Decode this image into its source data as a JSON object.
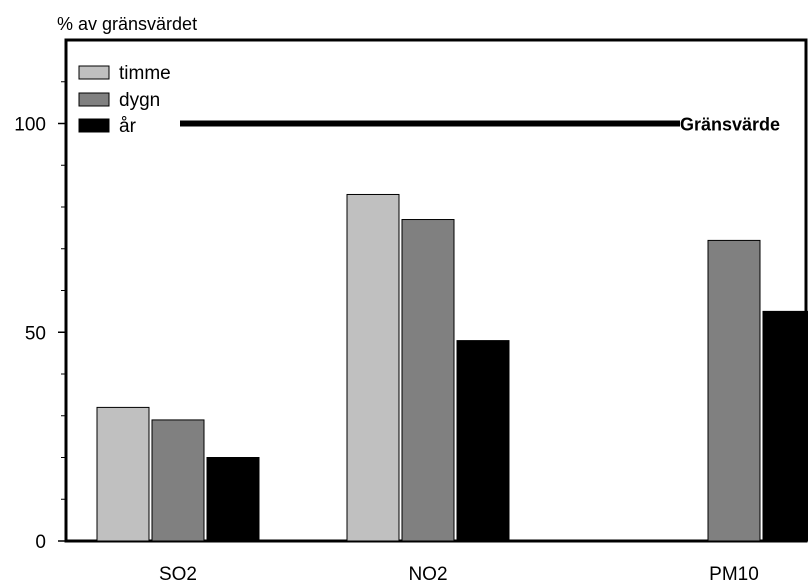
{
  "chart_data": {
    "type": "bar",
    "ylabel": "% av gränsvärdet",
    "xlabel": "",
    "title": "",
    "categories": [
      "SO2",
      "NO2",
      "PM10"
    ],
    "series": [
      {
        "name": "timme",
        "values": [
          32,
          83,
          null
        ],
        "color": "#c0c0c0"
      },
      {
        "name": "dygn",
        "values": [
          29,
          77,
          72
        ],
        "color": "#808080"
      },
      {
        "name": "år",
        "values": [
          20,
          48,
          55
        ],
        "color": "#000000"
      }
    ],
    "ylim": [
      0,
      120
    ],
    "yticks": [
      0,
      50,
      100
    ],
    "yminor_ticks": [
      10,
      20,
      30,
      40,
      60,
      70,
      80,
      90,
      110
    ],
    "reference_line": {
      "value": 100,
      "label": "Gränsvärde"
    },
    "legend": "top-left",
    "grid": false
  }
}
